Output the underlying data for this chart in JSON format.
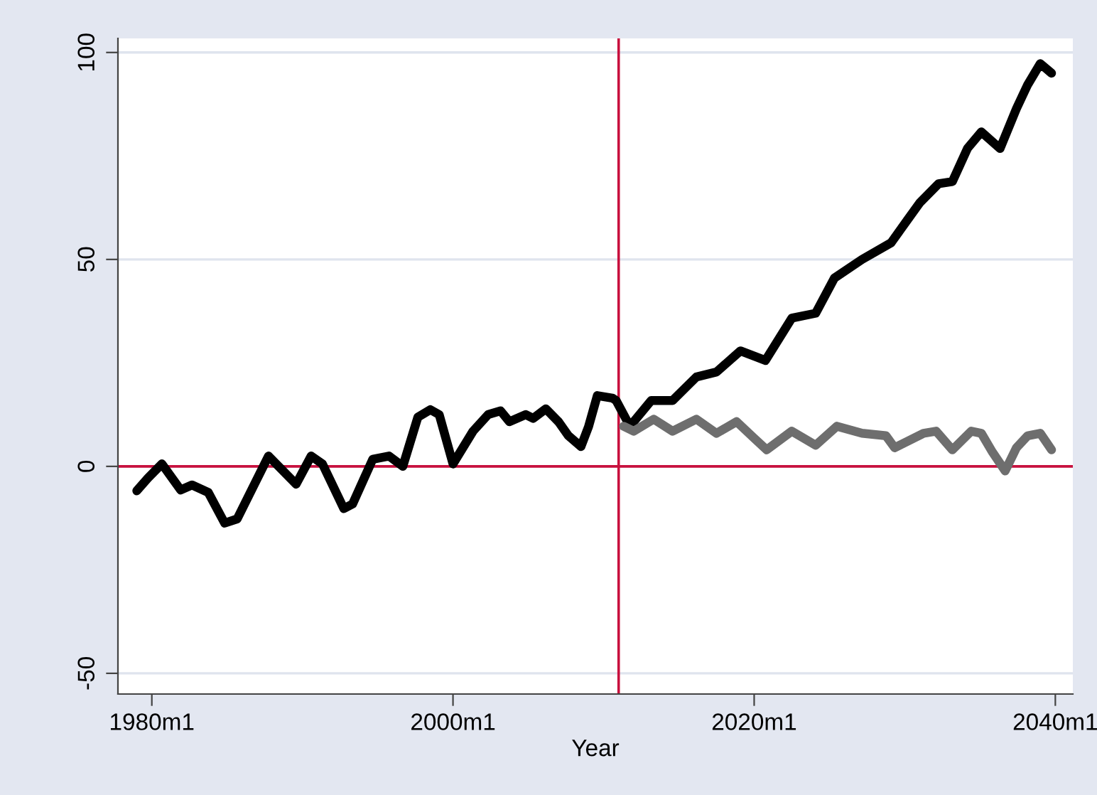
{
  "chart_data": {
    "type": "line",
    "xlabel": "Year",
    "series": [
      {
        "color": "#000000",
        "x": [
          "1979-01",
          "1979-10",
          "1980-09",
          "1981-12",
          "1982-09",
          "1983-10",
          "1984-11",
          "1985-09",
          "1987-10",
          "1989-08",
          "1990-08",
          "1991-05",
          "1992-10",
          "1993-05",
          "1994-09",
          "1995-10",
          "1996-09",
          "1997-09",
          "1998-07",
          "1999-02",
          "2000-01",
          "2001-05",
          "2002-05",
          "2003-03",
          "2003-10",
          "2004-11",
          "2005-05",
          "2006-03",
          "2007-01",
          "2007-09",
          "2008-07",
          "2009-01",
          "2009-08",
          "2010-08",
          "2010-11",
          "2011-10",
          "2013-03",
          "2014-08",
          "2016-03",
          "2017-07",
          "2019-02",
          "2020-10",
          "2022-07",
          "2024-02",
          "2025-05",
          "2027-03",
          "2029-02",
          "2031-01",
          "2032-04",
          "2033-03",
          "2034-03",
          "2035-02",
          "2036-05",
          "2037-06",
          "2038-03",
          "2039-01",
          "2039-10"
        ],
        "values": [
          -5.9,
          -2.8,
          0.6,
          -5.7,
          -4.5,
          -6.3,
          -13.7,
          -12.7,
          2.5,
          -4.3,
          2.5,
          0.6,
          -10.2,
          -9.1,
          1.7,
          2.5,
          0,
          11.9,
          13.7,
          12.5,
          0.6,
          8.5,
          12.5,
          13.4,
          10.8,
          12.5,
          11.6,
          13.9,
          10.8,
          7.4,
          4.8,
          9.6,
          17.1,
          16.5,
          15.9,
          9.7,
          15.9,
          15.9,
          21.6,
          22.8,
          27.9,
          25.6,
          35.8,
          37.0,
          45.5,
          50.0,
          54.0,
          63.7,
          68.3,
          68.8,
          76.8,
          80.8,
          76.8,
          86.4,
          92.2,
          97.3,
          95.0
        ]
      },
      {
        "color": "#6e6e6e",
        "x": [
          "2011-05",
          "2012-01",
          "2013-05",
          "2014-08",
          "2016-03",
          "2017-07",
          "2018-11",
          "2020-01",
          "2020-11",
          "2022-07",
          "2024-02",
          "2025-07",
          "2027-03",
          "2028-10",
          "2029-05",
          "2031-04",
          "2032-02",
          "2033-03",
          "2034-06",
          "2035-02",
          "2035-11",
          "2036-09",
          "2037-06",
          "2038-03",
          "2039-01",
          "2039-10"
        ],
        "values": [
          9.7,
          8.5,
          11.4,
          8.5,
          11.4,
          8.0,
          10.8,
          6.8,
          4.0,
          8.5,
          5.1,
          9.7,
          8.0,
          7.4,
          4.5,
          8.0,
          8.5,
          4.0,
          8.5,
          8.0,
          3.4,
          -1.1,
          4.5,
          7.4,
          8.0,
          4.0
        ]
      }
    ],
    "xlim": [
      "1977-10",
      "2041-03"
    ],
    "xticks": [
      {
        "value": "1980-01",
        "label": "1980m1"
      },
      {
        "value": "2000-01",
        "label": "2000m1"
      },
      {
        "value": "2020-01",
        "label": "2020m1"
      },
      {
        "value": "2040-01",
        "label": "2040m1"
      }
    ],
    "ylim": [
      -55,
      103.4
    ],
    "yticks": [
      -50,
      0,
      50,
      100
    ],
    "ref_lines": [
      {
        "axis": "x",
        "value": "2011-01",
        "color": "#c8103e"
      },
      {
        "axis": "y",
        "value": 0,
        "color": "#c8103e"
      }
    ],
    "grid": "y",
    "legend": false,
    "marker": "none",
    "line_style": "solid"
  }
}
